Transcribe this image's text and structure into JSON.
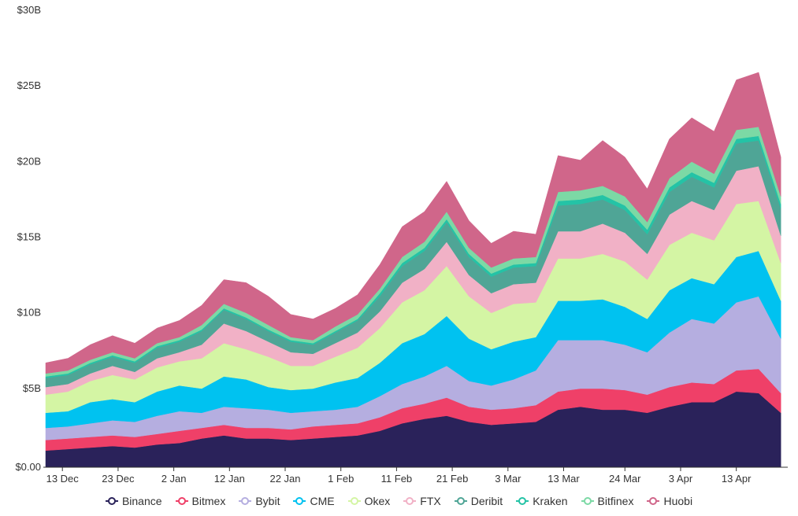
{
  "chart_data": {
    "type": "area",
    "stacked": true,
    "title": "",
    "xlabel": "",
    "ylabel": "",
    "ylim": [
      0,
      30
    ],
    "y_unit": "B (USD)",
    "y_ticks": [
      {
        "value": 0,
        "label": "$0.00"
      },
      {
        "value": 5,
        "label": "$5B"
      },
      {
        "value": 10,
        "label": "$10B"
      },
      {
        "value": 15,
        "label": "$15B"
      },
      {
        "value": 20,
        "label": "$20B"
      },
      {
        "value": 25,
        "label": "$25B"
      },
      {
        "value": 30,
        "label": "$30B"
      }
    ],
    "x_ticks": [
      {
        "day": 3,
        "label": "13 Dec"
      },
      {
        "day": 13,
        "label": "23 Dec"
      },
      {
        "day": 23,
        "label": "2 Jan"
      },
      {
        "day": 33,
        "label": "12 Jan"
      },
      {
        "day": 43,
        "label": "22 Jan"
      },
      {
        "day": 53,
        "label": "1 Feb"
      },
      {
        "day": 63,
        "label": "11 Feb"
      },
      {
        "day": 73,
        "label": "21 Feb"
      },
      {
        "day": 83,
        "label": "3 Mar"
      },
      {
        "day": 93,
        "label": "13 Mar"
      },
      {
        "day": 104,
        "label": "24 Mar"
      },
      {
        "day": 114,
        "label": "3 Apr"
      },
      {
        "day": 124,
        "label": "13 Apr"
      }
    ],
    "x_days": [
      0,
      4,
      8,
      12,
      16,
      20,
      24,
      28,
      32,
      36,
      40,
      44,
      48,
      52,
      56,
      60,
      64,
      68,
      72,
      76,
      80,
      84,
      88,
      92,
      96,
      100,
      104,
      108,
      112,
      116,
      120,
      124,
      128,
      132
    ],
    "legend_position": "bottom",
    "series": [
      {
        "name": "Binance",
        "color": "#2a225a",
        "values": [
          1.1,
          1.2,
          1.3,
          1.4,
          1.3,
          1.5,
          1.6,
          1.9,
          2.1,
          1.9,
          1.9,
          1.8,
          1.9,
          2.0,
          2.1,
          2.4,
          2.9,
          3.2,
          3.4,
          3.0,
          2.8,
          2.9,
          3.0,
          3.8,
          4.0,
          3.8,
          3.8,
          3.6,
          4.0,
          4.3,
          4.3,
          5.0,
          4.9,
          3.6
        ]
      },
      {
        "name": "Bitmex",
        "color": "#ef4068",
        "values": [
          0.7,
          0.7,
          0.7,
          0.7,
          0.7,
          0.7,
          0.8,
          0.7,
          0.7,
          0.7,
          0.7,
          0.7,
          0.8,
          0.8,
          0.8,
          0.9,
          1.0,
          1.0,
          1.2,
          1.0,
          1.0,
          1.0,
          1.1,
          1.2,
          1.2,
          1.4,
          1.3,
          1.2,
          1.3,
          1.3,
          1.2,
          1.4,
          1.6,
          1.3
        ]
      },
      {
        "name": "Bybit",
        "color": "#b5aee0",
        "values": [
          0.8,
          0.8,
          0.9,
          1.0,
          1.0,
          1.2,
          1.3,
          1.0,
          1.2,
          1.3,
          1.2,
          1.1,
          1.0,
          1.0,
          1.1,
          1.4,
          1.6,
          1.8,
          2.1,
          1.7,
          1.6,
          1.9,
          2.3,
          3.4,
          3.2,
          3.2,
          3.0,
          2.8,
          3.6,
          4.2,
          4.0,
          4.5,
          4.8,
          3.6
        ]
      },
      {
        "name": "CME",
        "color": "#00c2f0",
        "values": [
          1.0,
          1.0,
          1.4,
          1.4,
          1.3,
          1.6,
          1.7,
          1.6,
          2.0,
          1.9,
          1.5,
          1.5,
          1.5,
          1.8,
          1.9,
          2.2,
          2.7,
          2.8,
          3.3,
          2.8,
          2.4,
          2.5,
          2.2,
          2.6,
          2.6,
          2.7,
          2.5,
          2.2,
          2.8,
          2.7,
          2.6,
          3.0,
          3.0,
          2.5
        ]
      },
      {
        "name": "Okex",
        "color": "#d4f5a4",
        "values": [
          1.2,
          1.3,
          1.4,
          1.6,
          1.5,
          1.6,
          1.6,
          2.0,
          2.2,
          2.0,
          2.0,
          1.6,
          1.5,
          1.7,
          2.0,
          2.3,
          2.7,
          2.9,
          3.3,
          2.8,
          2.4,
          2.5,
          2.3,
          2.8,
          2.8,
          3.0,
          3.0,
          2.6,
          3.0,
          3.0,
          2.9,
          3.5,
          3.3,
          2.5
        ]
      },
      {
        "name": "FTX",
        "color": "#f1b1c6",
        "values": [
          0.5,
          0.5,
          0.5,
          0.6,
          0.5,
          0.6,
          0.6,
          0.9,
          1.3,
          1.2,
          1.0,
          0.9,
          0.8,
          0.9,
          1.0,
          1.1,
          1.3,
          1.4,
          1.6,
          1.4,
          1.3,
          1.3,
          1.3,
          1.8,
          1.8,
          2.0,
          1.9,
          1.7,
          2.0,
          2.1,
          2.0,
          2.2,
          2.3,
          1.8
        ]
      },
      {
        "name": "Deribit",
        "color": "#4fa596",
        "values": [
          0.6,
          0.6,
          0.6,
          0.6,
          0.6,
          0.7,
          0.7,
          0.9,
          0.9,
          0.8,
          0.7,
          0.7,
          0.6,
          0.7,
          0.8,
          1.0,
          1.1,
          1.2,
          1.3,
          1.2,
          1.1,
          1.1,
          1.1,
          1.7,
          1.8,
          1.6,
          1.5,
          1.3,
          1.5,
          1.6,
          1.5,
          1.8,
          1.7,
          1.8
        ]
      },
      {
        "name": "Kraken",
        "color": "#24c3a6",
        "values": [
          0.1,
          0.1,
          0.1,
          0.1,
          0.1,
          0.1,
          0.1,
          0.1,
          0.1,
          0.1,
          0.1,
          0.1,
          0.1,
          0.1,
          0.1,
          0.2,
          0.2,
          0.2,
          0.2,
          0.2,
          0.2,
          0.2,
          0.2,
          0.3,
          0.3,
          0.3,
          0.3,
          0.3,
          0.3,
          0.3,
          0.3,
          0.3,
          0.3,
          0.3
        ]
      },
      {
        "name": "Bitfinex",
        "color": "#7cd9a5",
        "values": [
          0.2,
          0.2,
          0.2,
          0.2,
          0.2,
          0.2,
          0.2,
          0.3,
          0.3,
          0.3,
          0.3,
          0.2,
          0.2,
          0.3,
          0.3,
          0.3,
          0.4,
          0.4,
          0.5,
          0.4,
          0.4,
          0.4,
          0.4,
          0.6,
          0.6,
          0.6,
          0.6,
          0.5,
          0.6,
          0.7,
          0.6,
          0.6,
          0.6,
          0.5
        ]
      },
      {
        "name": "Huobi",
        "color": "#d0668a",
        "values": [
          0.7,
          0.8,
          1.0,
          1.1,
          1.0,
          1.0,
          1.1,
          1.3,
          1.6,
          2.0,
          1.9,
          1.5,
          1.4,
          1.2,
          1.3,
          1.6,
          2.0,
          2.0,
          2.0,
          1.8,
          1.6,
          1.8,
          1.5,
          2.4,
          2.0,
          3.0,
          2.6,
          2.2,
          2.6,
          2.9,
          2.8,
          3.3,
          3.6,
          2.6
        ]
      }
    ]
  }
}
